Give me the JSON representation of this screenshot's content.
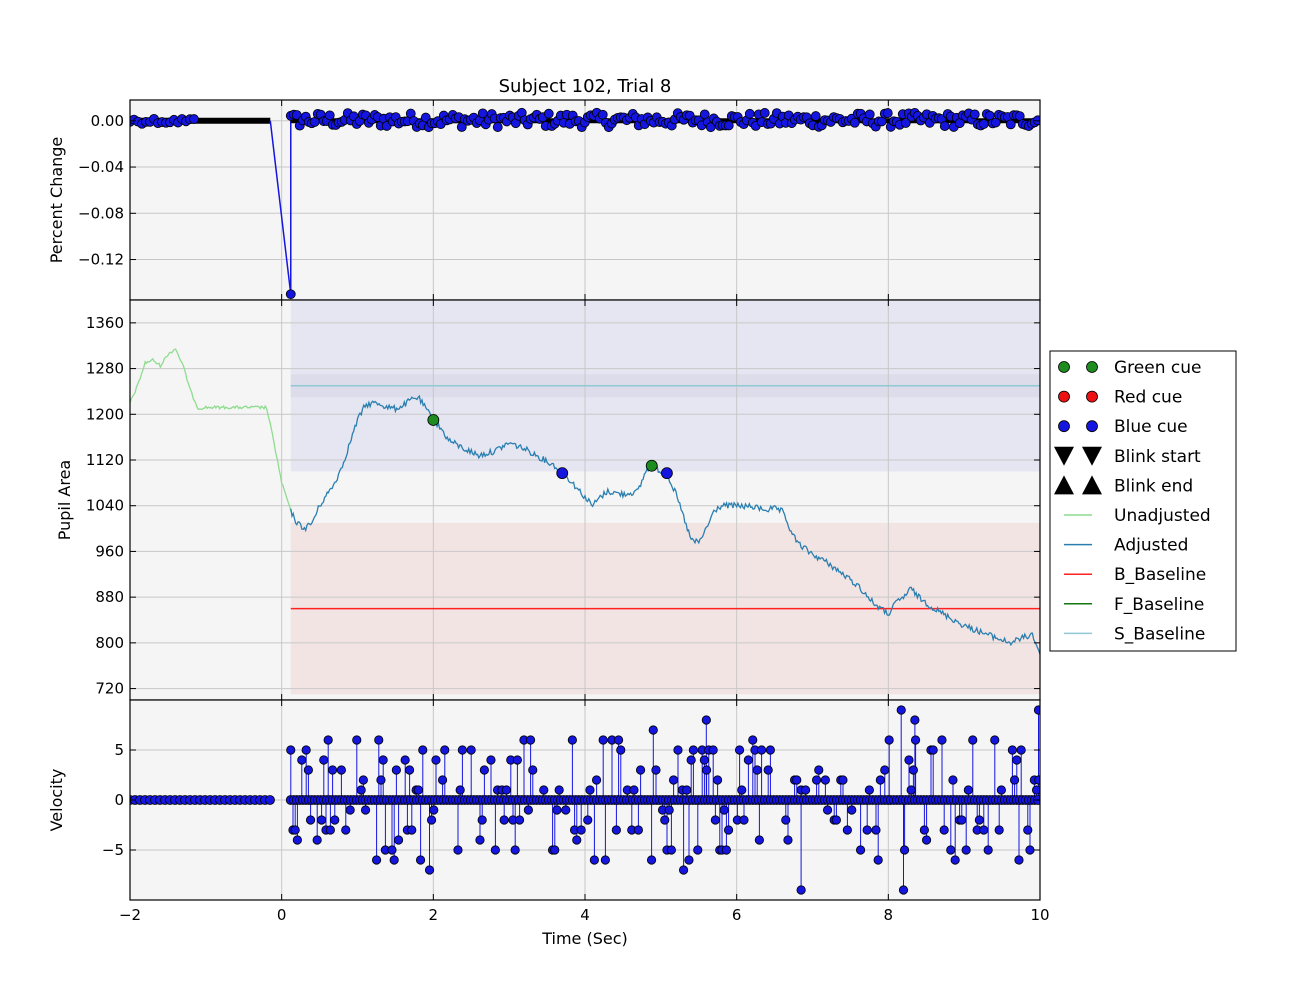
{
  "chart_data": {
    "type": "line",
    "title": "Subject 102, Trial 8",
    "xlabel": "Time (Sec)",
    "xlim": [
      -2,
      10
    ],
    "xticks": [
      "−2",
      "0",
      "2",
      "4",
      "6",
      "8",
      "10"
    ],
    "grid": true,
    "legend_position": "right",
    "panels": [
      {
        "name": "percent-change",
        "ylabel": "Percent Change",
        "ylim": [
          -0.155,
          0.018
        ],
        "ytick_values": [
          0.0,
          -0.04,
          -0.08,
          -0.12
        ],
        "ytick_labels": [
          "0.00",
          "−0.04",
          "−0.08",
          "−0.12"
        ],
        "spike": {
          "x": [
            -0.15,
            0.12,
            0.12
          ],
          "y": [
            0.0,
            -0.15,
            0.0
          ]
        },
        "noise_range": [
          -0.008,
          0.01
        ]
      },
      {
        "name": "pupil-area",
        "ylabel": "Pupil Area",
        "ylim": [
          700,
          1400
        ],
        "ytick_values": [
          1360,
          1280,
          1200,
          1120,
          1040,
          960,
          880,
          800,
          720
        ],
        "ytick_labels": [
          "1360",
          "1280",
          "1200",
          "1120",
          "1040",
          "960",
          "880",
          "800",
          "720"
        ],
        "shaded_bands": [
          {
            "x": [
              0.12,
              10
            ],
            "y": [
              1100,
              1400
            ],
            "color": "#e6e6f2"
          },
          {
            "x": [
              0.12,
              10
            ],
            "y": [
              1230,
              1270
            ],
            "color": "#dcdcea"
          },
          {
            "x": [
              0.12,
              10
            ],
            "y": [
              710,
              1010
            ],
            "color": "#f3e4e4"
          }
        ],
        "baselines": [
          {
            "name": "S_Baseline",
            "y": 1250,
            "color": "#8fc9d4"
          },
          {
            "name": "B_Baseline",
            "y": 860,
            "color": "#ff2020"
          }
        ],
        "series": [
          {
            "name": "Unadjusted",
            "color": "#8fdc8f",
            "x": [
              -2,
              -1.9,
              -1.8,
              -1.7,
              -1.6,
              -1.5,
              -1.4,
              -1.35,
              -1.3,
              -1.2,
              -1.1,
              -1.0,
              -0.5,
              -0.2,
              -0.1,
              0.0,
              0.1,
              0.12
            ],
            "y": [
              1220,
              1250,
              1290,
              1295,
              1285,
              1305,
              1315,
              1300,
              1285,
              1240,
              1210,
              1212,
              1212,
              1212,
              1150,
              1080,
              1040,
              1030
            ]
          },
          {
            "name": "Adjusted",
            "color": "#2a7fb0",
            "x": [
              0.12,
              0.2,
              0.3,
              0.4,
              0.5,
              0.6,
              0.7,
              0.8,
              0.9,
              1.0,
              1.1,
              1.2,
              1.3,
              1.4,
              1.5,
              1.6,
              1.7,
              1.8,
              1.9,
              2.0,
              2.1,
              2.2,
              2.4,
              2.6,
              2.8,
              3.0,
              3.2,
              3.4,
              3.6,
              3.7,
              3.8,
              3.9,
              4.0,
              4.1,
              4.2,
              4.3,
              4.5,
              4.7,
              4.8,
              4.9,
              5.0,
              5.1,
              5.2,
              5.3,
              5.4,
              5.5,
              5.6,
              5.7,
              5.8,
              6.0,
              6.2,
              6.4,
              6.5,
              6.6,
              6.7,
              6.8,
              7.0,
              7.2,
              7.4,
              7.6,
              7.8,
              8.0,
              8.1,
              8.2,
              8.3,
              8.4,
              8.6,
              8.8,
              9.0,
              9.2,
              9.4,
              9.6,
              9.8,
              9.9,
              10.0
            ],
            "y": [
              1030,
              1010,
              1000,
              1010,
              1040,
              1060,
              1080,
              1110,
              1150,
              1190,
              1215,
              1220,
              1218,
              1212,
              1210,
              1215,
              1225,
              1230,
              1210,
              1190,
              1175,
              1155,
              1140,
              1128,
              1135,
              1150,
              1140,
              1125,
              1110,
              1097,
              1085,
              1070,
              1055,
              1040,
              1055,
              1065,
              1060,
              1065,
              1100,
              1110,
              1100,
              1090,
              1060,
              1020,
              980,
              975,
              1000,
              1030,
              1040,
              1040,
              1038,
              1033,
              1035,
              1030,
              1000,
              975,
              955,
              940,
              920,
              900,
              870,
              850,
              870,
              880,
              895,
              880,
              860,
              845,
              830,
              820,
              810,
              800,
              810,
              815,
              780
            ]
          }
        ],
        "cues": [
          {
            "type": "Green cue",
            "x": 2.0,
            "y": 1190
          },
          {
            "type": "Blue cue",
            "x": 3.7,
            "y": 1097
          },
          {
            "type": "Green cue",
            "x": 4.88,
            "y": 1110
          },
          {
            "type": "Blue cue",
            "x": 5.08,
            "y": 1097
          }
        ]
      },
      {
        "name": "velocity",
        "ylabel": "Velocity",
        "ylim": [
          -10,
          10
        ],
        "ytick_values": [
          5,
          0,
          -5
        ],
        "ytick_labels": [
          "5",
          "0",
          "−5"
        ],
        "flat_segment": {
          "x": [
            -2,
            -0.15
          ],
          "y": 0
        },
        "stem_range": [
          0.12,
          10
        ],
        "peaks": [
          {
            "x": 5.6,
            "y": 8
          },
          {
            "x": 8.17,
            "y": 9
          },
          {
            "x": 8.35,
            "y": 8
          },
          {
            "x": 9.98,
            "y": 9
          },
          {
            "x": 6.85,
            "y": -9
          },
          {
            "x": 8.2,
            "y": -9
          },
          {
            "x": 1.95,
            "y": -7
          },
          {
            "x": 5.3,
            "y": -7
          },
          {
            "x": 4.9,
            "y": 7
          }
        ]
      }
    ],
    "legend": [
      {
        "label": "Green cue",
        "marker": "circle",
        "color": "#1e8c1e"
      },
      {
        "label": "Red cue",
        "marker": "circle",
        "color": "#ee1111"
      },
      {
        "label": "Blue cue",
        "marker": "circle",
        "color": "#1515e0"
      },
      {
        "label": "Blink start",
        "marker": "triangle-down",
        "color": "#000000"
      },
      {
        "label": "Blink end",
        "marker": "triangle-up",
        "color": "#000000"
      },
      {
        "label": "Unadjusted",
        "marker": "line",
        "color": "#8fdc8f"
      },
      {
        "label": "Adjusted",
        "marker": "line",
        "color": "#2a7fb0"
      },
      {
        "label": "B_Baseline",
        "marker": "line",
        "color": "#ff2020"
      },
      {
        "label": "F_Baseline",
        "marker": "line",
        "color": "#117711"
      },
      {
        "label": "S_Baseline",
        "marker": "line",
        "color": "#8fc9d4"
      }
    ]
  }
}
